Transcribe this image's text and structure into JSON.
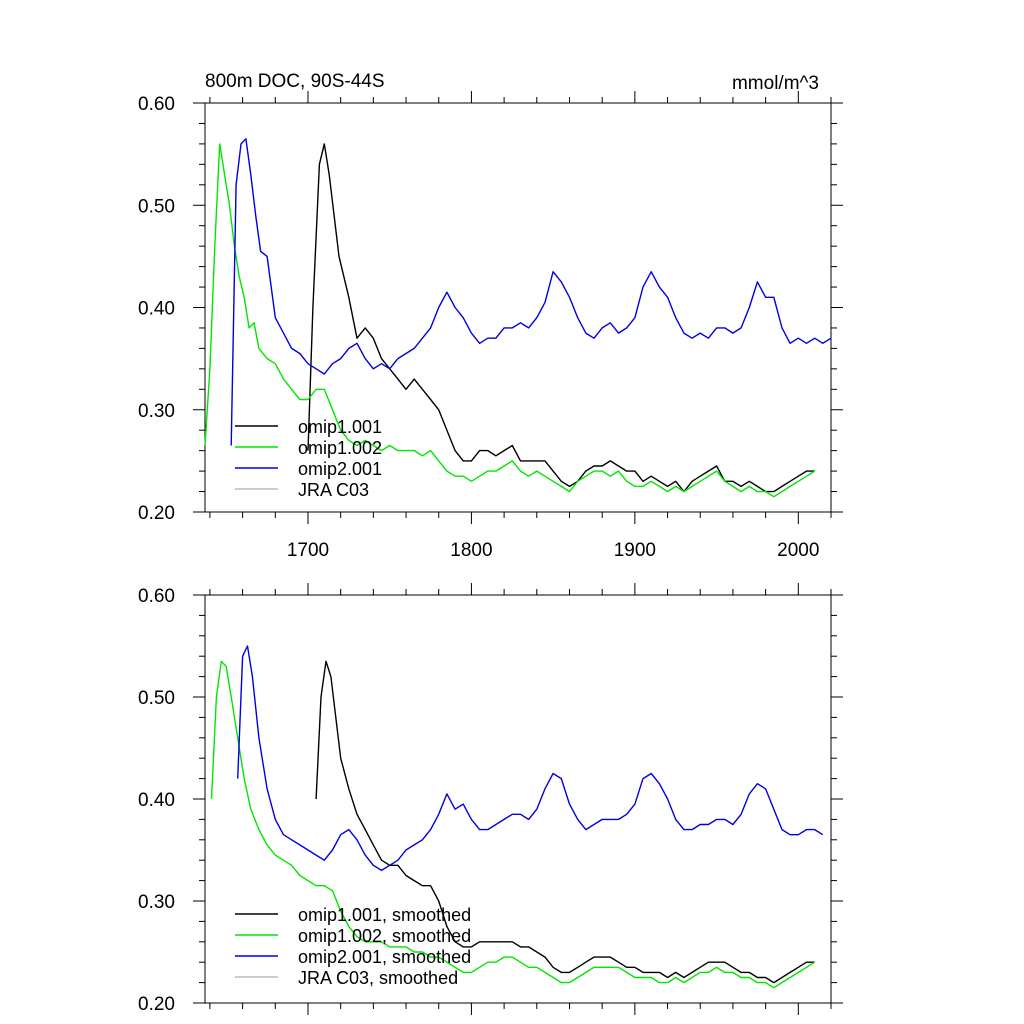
{
  "chart_data": [
    {
      "type": "line",
      "title": "800m DOC, 90S-44S",
      "units": "mmol/m^3",
      "xlim": [
        1637,
        2020
      ],
      "ylim": [
        0.2,
        0.6
      ],
      "x_ticks": [
        1700,
        1800,
        1900,
        2000
      ],
      "x_tick_labels": [
        "1700",
        "1800",
        "1900",
        "2000"
      ],
      "y_ticks": [
        0.2,
        0.3,
        0.4,
        0.5,
        0.6
      ],
      "y_tick_labels": [
        "0.20",
        "0.30",
        "0.40",
        "0.50",
        "0.60"
      ],
      "grid": false,
      "legend": "bottom-left",
      "series": [
        {
          "name": "omip1.001",
          "color": "#000000",
          "x": [
            1700,
            1703,
            1707,
            1710,
            1713,
            1716,
            1719,
            1722,
            1725,
            1730,
            1735,
            1740,
            1745,
            1750,
            1755,
            1760,
            1765,
            1770,
            1775,
            1780,
            1785,
            1790,
            1795,
            1800,
            1805,
            1810,
            1815,
            1820,
            1825,
            1830,
            1835,
            1840,
            1845,
            1850,
            1855,
            1860,
            1865,
            1870,
            1875,
            1880,
            1885,
            1890,
            1895,
            1900,
            1905,
            1910,
            1915,
            1920,
            1925,
            1930,
            1935,
            1940,
            1945,
            1950,
            1955,
            1960,
            1965,
            1970,
            1975,
            1980,
            1985,
            1990,
            1995,
            2000,
            2005,
            2010
          ],
          "y": [
            0.26,
            0.4,
            0.54,
            0.56,
            0.53,
            0.49,
            0.45,
            0.43,
            0.41,
            0.37,
            0.38,
            0.37,
            0.35,
            0.34,
            0.33,
            0.32,
            0.33,
            0.32,
            0.31,
            0.3,
            0.28,
            0.26,
            0.25,
            0.25,
            0.26,
            0.26,
            0.255,
            0.26,
            0.265,
            0.25,
            0.25,
            0.25,
            0.25,
            0.24,
            0.23,
            0.225,
            0.23,
            0.24,
            0.245,
            0.245,
            0.25,
            0.245,
            0.24,
            0.24,
            0.23,
            0.235,
            0.23,
            0.225,
            0.23,
            0.22,
            0.23,
            0.235,
            0.24,
            0.245,
            0.23,
            0.23,
            0.225,
            0.23,
            0.225,
            0.22,
            0.22,
            0.225,
            0.23,
            0.235,
            0.24,
            0.24
          ]
        },
        {
          "name": "omip1.002",
          "color": "#00e600",
          "x": [
            1637,
            1640,
            1643,
            1646,
            1649,
            1652,
            1655,
            1658,
            1661,
            1664,
            1667,
            1670,
            1675,
            1680,
            1685,
            1690,
            1695,
            1700,
            1705,
            1710,
            1715,
            1720,
            1725,
            1730,
            1735,
            1740,
            1745,
            1750,
            1755,
            1760,
            1765,
            1770,
            1775,
            1780,
            1785,
            1790,
            1795,
            1800,
            1805,
            1810,
            1815,
            1820,
            1825,
            1830,
            1835,
            1840,
            1845,
            1850,
            1855,
            1860,
            1865,
            1870,
            1875,
            1880,
            1885,
            1890,
            1895,
            1900,
            1905,
            1910,
            1915,
            1920,
            1925,
            1930,
            1935,
            1940,
            1945,
            1950,
            1955,
            1960,
            1965,
            1970,
            1975,
            1980,
            1985,
            1990,
            1995,
            2000,
            2005,
            2010
          ],
          "y": [
            0.265,
            0.34,
            0.46,
            0.56,
            0.53,
            0.5,
            0.46,
            0.43,
            0.41,
            0.38,
            0.385,
            0.36,
            0.35,
            0.345,
            0.33,
            0.32,
            0.31,
            0.31,
            0.32,
            0.32,
            0.3,
            0.28,
            0.27,
            0.265,
            0.27,
            0.265,
            0.26,
            0.265,
            0.26,
            0.26,
            0.26,
            0.255,
            0.26,
            0.25,
            0.24,
            0.235,
            0.235,
            0.23,
            0.235,
            0.24,
            0.24,
            0.245,
            0.25,
            0.24,
            0.235,
            0.24,
            0.235,
            0.23,
            0.225,
            0.22,
            0.23,
            0.235,
            0.24,
            0.24,
            0.235,
            0.24,
            0.23,
            0.225,
            0.225,
            0.23,
            0.225,
            0.22,
            0.225,
            0.22,
            0.225,
            0.23,
            0.235,
            0.24,
            0.23,
            0.225,
            0.22,
            0.225,
            0.22,
            0.22,
            0.215,
            0.22,
            0.225,
            0.23,
            0.235,
            0.24
          ]
        },
        {
          "name": "omip2.001",
          "color": "#0000e0",
          "x": [
            1653,
            1656,
            1659,
            1662,
            1665,
            1668,
            1671,
            1675,
            1680,
            1685,
            1690,
            1695,
            1700,
            1705,
            1710,
            1715,
            1720,
            1725,
            1730,
            1735,
            1740,
            1745,
            1750,
            1755,
            1760,
            1765,
            1770,
            1775,
            1780,
            1785,
            1790,
            1795,
            1800,
            1805,
            1810,
            1815,
            1820,
            1825,
            1830,
            1835,
            1840,
            1845,
            1850,
            1855,
            1860,
            1865,
            1870,
            1875,
            1880,
            1885,
            1890,
            1895,
            1900,
            1905,
            1910,
            1915,
            1920,
            1925,
            1930,
            1935,
            1940,
            1945,
            1950,
            1955,
            1960,
            1965,
            1970,
            1975,
            1980,
            1985,
            1990,
            1995,
            2000,
            2005,
            2010,
            2015,
            2020
          ],
          "y": [
            0.265,
            0.52,
            0.56,
            0.565,
            0.53,
            0.49,
            0.455,
            0.45,
            0.39,
            0.375,
            0.36,
            0.355,
            0.345,
            0.34,
            0.335,
            0.345,
            0.35,
            0.36,
            0.365,
            0.35,
            0.34,
            0.345,
            0.34,
            0.35,
            0.355,
            0.36,
            0.37,
            0.38,
            0.4,
            0.415,
            0.4,
            0.39,
            0.375,
            0.365,
            0.37,
            0.37,
            0.38,
            0.38,
            0.385,
            0.38,
            0.39,
            0.405,
            0.435,
            0.425,
            0.41,
            0.39,
            0.375,
            0.37,
            0.38,
            0.385,
            0.375,
            0.38,
            0.39,
            0.42,
            0.435,
            0.42,
            0.41,
            0.39,
            0.375,
            0.37,
            0.375,
            0.37,
            0.38,
            0.38,
            0.375,
            0.38,
            0.4,
            0.425,
            0.41,
            0.41,
            0.38,
            0.365,
            0.37,
            0.365,
            0.37,
            0.365,
            0.37
          ]
        },
        {
          "name": "JRA C03",
          "color": "#bbbbbb",
          "x": [],
          "y": []
        }
      ]
    },
    {
      "type": "line",
      "title": "",
      "xlim": [
        1637,
        2020
      ],
      "ylim": [
        0.2,
        0.6
      ],
      "x_ticks": [
        1700,
        1800,
        1900,
        2000
      ],
      "x_tick_labels": [],
      "y_ticks": [
        0.2,
        0.3,
        0.4,
        0.5,
        0.6
      ],
      "y_tick_labels": [
        "0.20",
        "0.30",
        "0.40",
        "0.50",
        "0.60"
      ],
      "grid": false,
      "legend": "bottom-left",
      "series": [
        {
          "name": "omip1.001, smoothed",
          "color": "#000000",
          "x": [
            1705,
            1708,
            1711,
            1714,
            1717,
            1720,
            1725,
            1730,
            1735,
            1740,
            1745,
            1750,
            1755,
            1760,
            1765,
            1770,
            1775,
            1780,
            1785,
            1790,
            1795,
            1800,
            1805,
            1810,
            1815,
            1820,
            1825,
            1830,
            1835,
            1840,
            1845,
            1850,
            1855,
            1860,
            1865,
            1870,
            1875,
            1880,
            1885,
            1890,
            1895,
            1900,
            1905,
            1910,
            1915,
            1920,
            1925,
            1930,
            1935,
            1940,
            1945,
            1950,
            1955,
            1960,
            1965,
            1970,
            1975,
            1980,
            1985,
            1990,
            1995,
            2000,
            2005,
            2010
          ],
          "y": [
            0.4,
            0.5,
            0.535,
            0.52,
            0.48,
            0.44,
            0.41,
            0.385,
            0.37,
            0.355,
            0.34,
            0.335,
            0.335,
            0.325,
            0.32,
            0.315,
            0.315,
            0.3,
            0.275,
            0.26,
            0.255,
            0.255,
            0.26,
            0.26,
            0.26,
            0.26,
            0.26,
            0.255,
            0.255,
            0.25,
            0.245,
            0.235,
            0.23,
            0.23,
            0.235,
            0.24,
            0.245,
            0.245,
            0.245,
            0.24,
            0.235,
            0.235,
            0.23,
            0.23,
            0.23,
            0.225,
            0.23,
            0.225,
            0.23,
            0.235,
            0.24,
            0.24,
            0.24,
            0.235,
            0.23,
            0.23,
            0.225,
            0.225,
            0.22,
            0.225,
            0.23,
            0.235,
            0.24,
            0.24
          ]
        },
        {
          "name": "omip1.002, smoothed",
          "color": "#00e600",
          "x": [
            1641,
            1644,
            1647,
            1650,
            1653,
            1657,
            1661,
            1665,
            1670,
            1675,
            1680,
            1685,
            1690,
            1695,
            1700,
            1705,
            1710,
            1715,
            1720,
            1725,
            1730,
            1735,
            1740,
            1745,
            1750,
            1755,
            1760,
            1765,
            1770,
            1775,
            1780,
            1785,
            1790,
            1795,
            1800,
            1805,
            1810,
            1815,
            1820,
            1825,
            1830,
            1835,
            1840,
            1845,
            1850,
            1855,
            1860,
            1865,
            1870,
            1875,
            1880,
            1885,
            1890,
            1895,
            1900,
            1905,
            1910,
            1915,
            1920,
            1925,
            1930,
            1935,
            1940,
            1945,
            1950,
            1955,
            1960,
            1965,
            1970,
            1975,
            1980,
            1985,
            1990,
            1995,
            2000,
            2005,
            2010
          ],
          "y": [
            0.4,
            0.5,
            0.535,
            0.53,
            0.5,
            0.46,
            0.42,
            0.39,
            0.37,
            0.355,
            0.345,
            0.34,
            0.335,
            0.325,
            0.32,
            0.315,
            0.315,
            0.31,
            0.29,
            0.275,
            0.265,
            0.26,
            0.26,
            0.26,
            0.255,
            0.255,
            0.255,
            0.25,
            0.25,
            0.245,
            0.245,
            0.24,
            0.235,
            0.23,
            0.23,
            0.235,
            0.24,
            0.24,
            0.245,
            0.245,
            0.24,
            0.235,
            0.235,
            0.23,
            0.225,
            0.22,
            0.22,
            0.225,
            0.23,
            0.235,
            0.235,
            0.235,
            0.235,
            0.23,
            0.225,
            0.225,
            0.225,
            0.22,
            0.22,
            0.225,
            0.22,
            0.225,
            0.23,
            0.23,
            0.235,
            0.23,
            0.23,
            0.225,
            0.225,
            0.22,
            0.22,
            0.215,
            0.22,
            0.225,
            0.23,
            0.235,
            0.24
          ]
        },
        {
          "name": "omip2.001, smoothed",
          "color": "#0000e0",
          "x": [
            1657,
            1660,
            1663,
            1666,
            1670,
            1675,
            1680,
            1685,
            1690,
            1695,
            1700,
            1705,
            1710,
            1715,
            1720,
            1725,
            1730,
            1735,
            1740,
            1745,
            1750,
            1755,
            1760,
            1765,
            1770,
            1775,
            1780,
            1785,
            1790,
            1795,
            1800,
            1805,
            1810,
            1815,
            1820,
            1825,
            1830,
            1835,
            1840,
            1845,
            1850,
            1855,
            1860,
            1865,
            1870,
            1875,
            1880,
            1885,
            1890,
            1895,
            1900,
            1905,
            1910,
            1915,
            1920,
            1925,
            1930,
            1935,
            1940,
            1945,
            1950,
            1955,
            1960,
            1965,
            1970,
            1975,
            1980,
            1985,
            1990,
            1995,
            2000,
            2005,
            2010,
            2015
          ],
          "y": [
            0.42,
            0.54,
            0.55,
            0.52,
            0.46,
            0.41,
            0.38,
            0.365,
            0.36,
            0.355,
            0.35,
            0.345,
            0.34,
            0.35,
            0.365,
            0.37,
            0.36,
            0.345,
            0.335,
            0.33,
            0.335,
            0.34,
            0.35,
            0.355,
            0.36,
            0.37,
            0.385,
            0.405,
            0.39,
            0.395,
            0.38,
            0.37,
            0.37,
            0.375,
            0.38,
            0.385,
            0.385,
            0.38,
            0.39,
            0.41,
            0.425,
            0.42,
            0.395,
            0.38,
            0.37,
            0.375,
            0.38,
            0.38,
            0.38,
            0.385,
            0.395,
            0.42,
            0.425,
            0.415,
            0.4,
            0.38,
            0.37,
            0.37,
            0.375,
            0.375,
            0.38,
            0.38,
            0.375,
            0.385,
            0.405,
            0.415,
            0.41,
            0.39,
            0.37,
            0.365,
            0.365,
            0.37,
            0.37,
            0.365
          ]
        },
        {
          "name": "JRA C03, smoothed",
          "color": "#bbbbbb",
          "x": [],
          "y": []
        }
      ]
    }
  ]
}
